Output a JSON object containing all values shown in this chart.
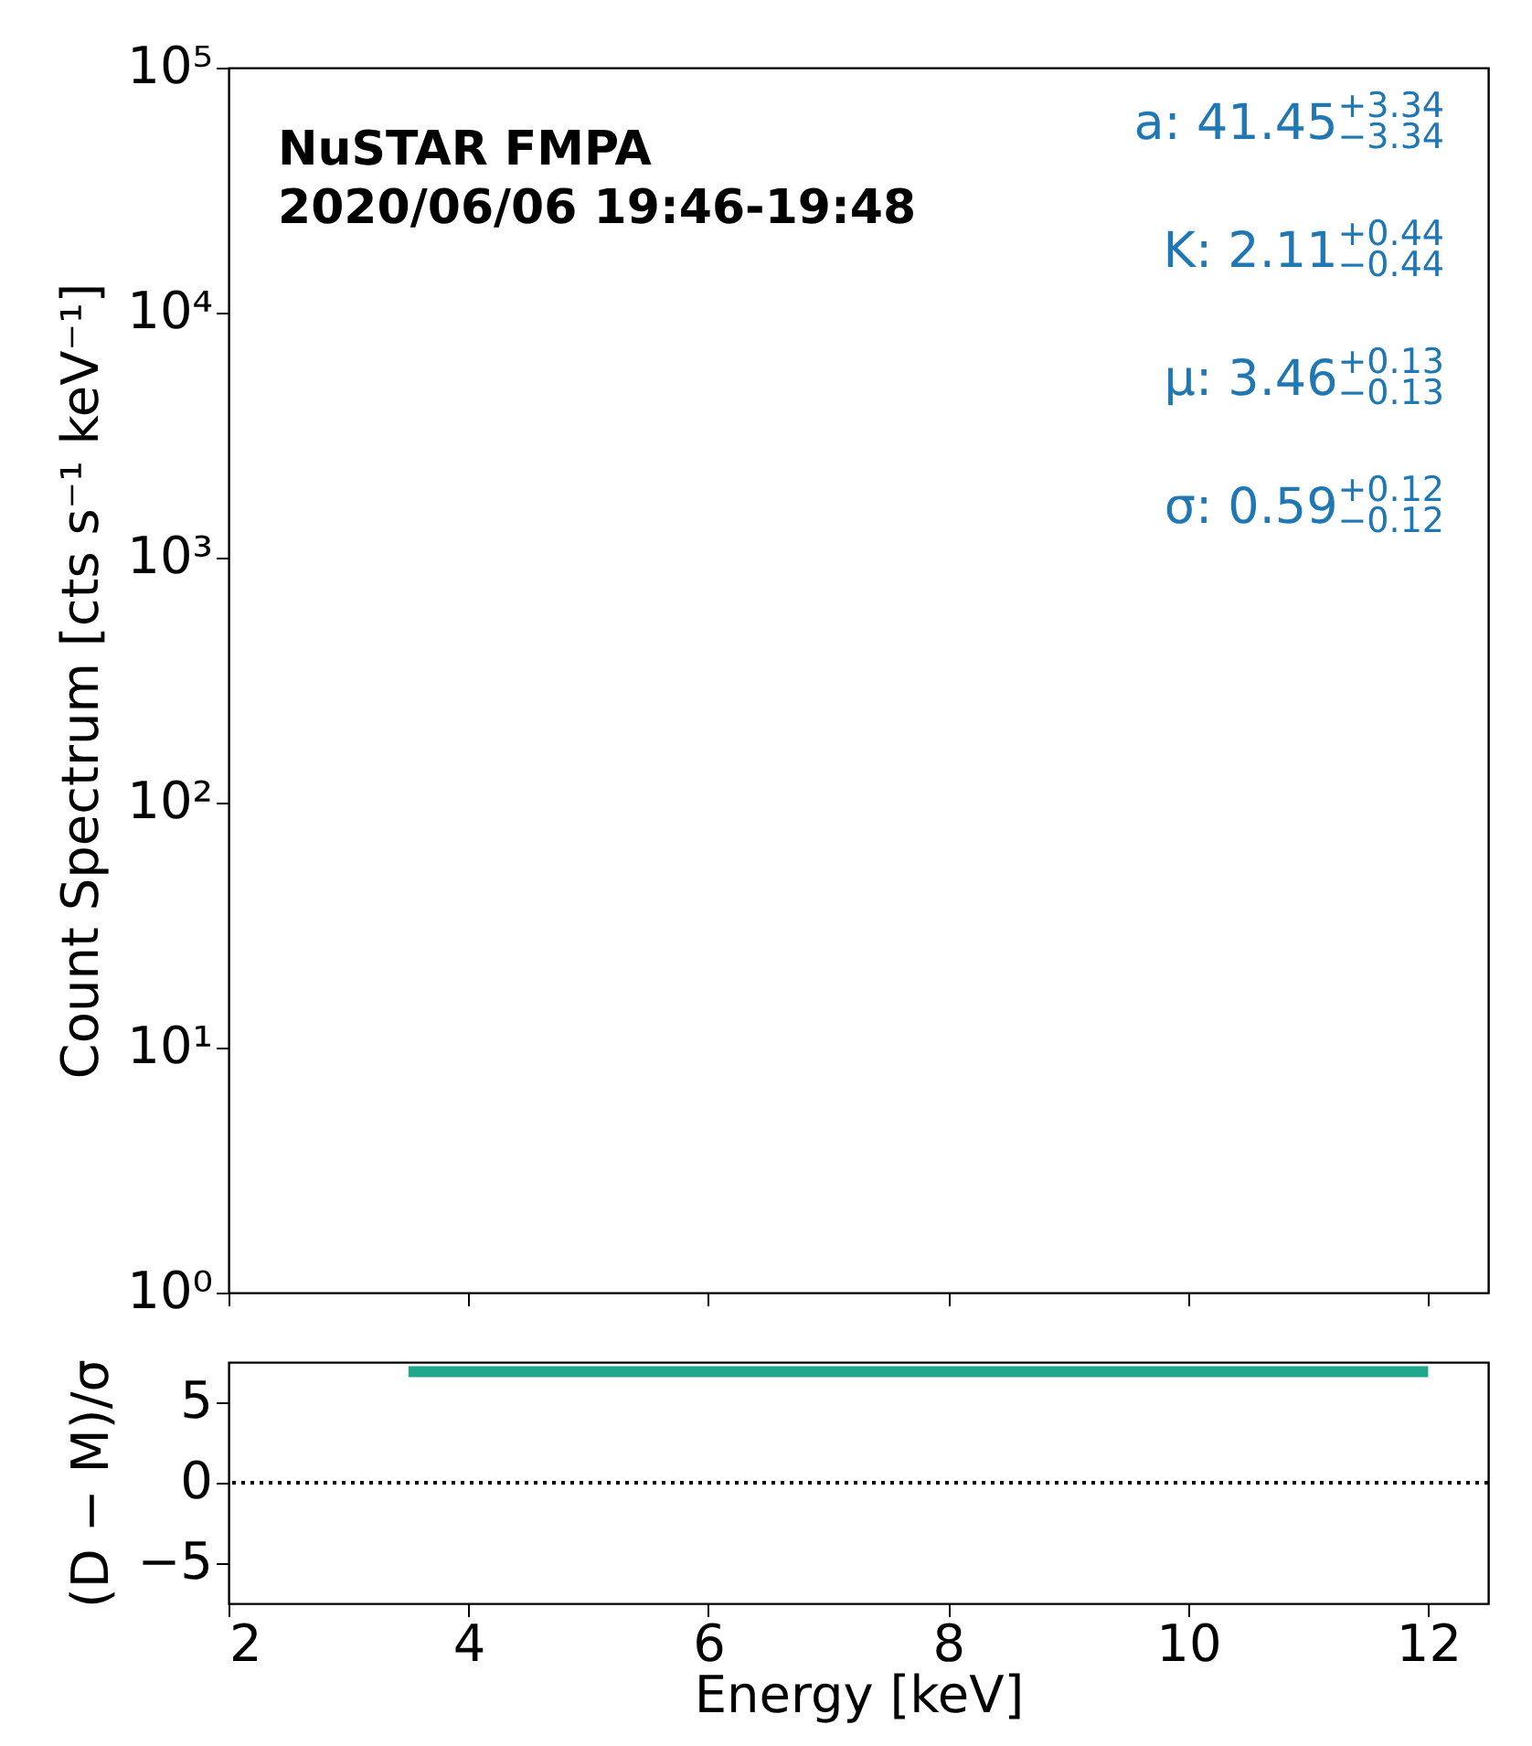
{
  "chart_data": [
    {
      "type": "line",
      "ylabel": "Count Spectrum [cts s⁻¹ keV⁻¹]",
      "xlim": [
        2,
        12.5
      ],
      "xticks": [
        2,
        4,
        6,
        8,
        10,
        12
      ],
      "ylim": [
        1,
        100000
      ],
      "log": true,
      "yticks": [
        {
          "value": 1,
          "label": "10⁰"
        },
        {
          "value": 10,
          "label": "10¹"
        },
        {
          "value": 100,
          "label": "10²"
        },
        {
          "value": 1000,
          "label": "10³"
        },
        {
          "value": 10000,
          "label": "10⁴"
        },
        {
          "value": 100000,
          "label": "10⁵"
        }
      ],
      "tick_labels": "y",
      "grid": false,
      "legend": false,
      "annotations": [
        "NuSTAR FMPA",
        "2020/06/06 19:46-19:48",
        "a: 41.45$^{+3.34}$$_{−3.34}$",
        "K: 2.11$^{+0.44}$$_{−0.44}$",
        "μ: 3.46$^{+0.13}$$_{−0.13}$",
        "σ: 0.59$^{+0.12}$$_{−0.12}$"
      ]
    },
    {
      "type": "line",
      "xlabel": "Energy [keV]",
      "ylabel": "(D − M)/σ",
      "xlim": [
        2,
        12.5
      ],
      "xticks": [
        2,
        4,
        6,
        8,
        10,
        12
      ],
      "ylim": [
        -7.5,
        7.5
      ],
      "yticks": [
        -5,
        0,
        5
      ],
      "grid": false,
      "legend": false,
      "x": [
        3.5,
        12
      ],
      "series": [
        {
          "color": "#1fa68c",
          "values": [
            6.9,
            6.9
          ]
        }
      ],
      "ref_lines": [
        {
          "axis": "y",
          "value": 0,
          "line_style": "dotted"
        }
      ]
    }
  ]
}
